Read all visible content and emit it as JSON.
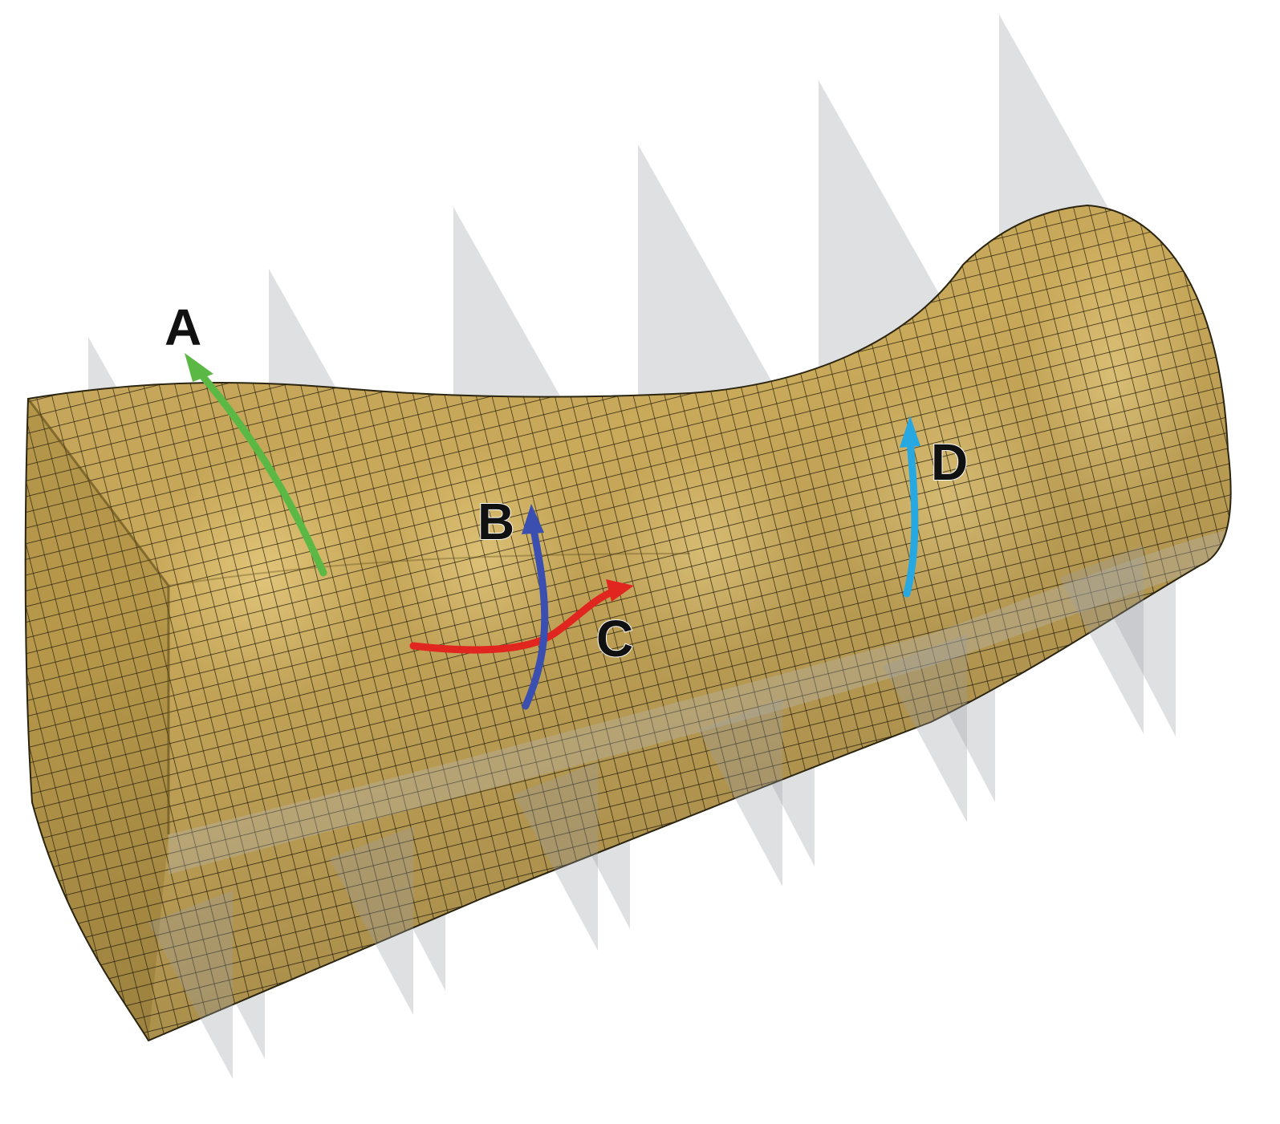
{
  "figure": {
    "colors": {
      "mesh_fill": "#c9a95a",
      "mesh_shadow": "#8f7630",
      "mesh_lines": "#2b2410",
      "planes": "#9aa0a6"
    },
    "paths": [
      {
        "id": "A",
        "label": "A",
        "color": "#5cb845"
      },
      {
        "id": "B",
        "label": "B",
        "color": "#3b4fb0"
      },
      {
        "id": "C",
        "label": "C",
        "color": "#e0261f"
      },
      {
        "id": "D",
        "label": "D",
        "color": "#28a8e0"
      }
    ]
  }
}
